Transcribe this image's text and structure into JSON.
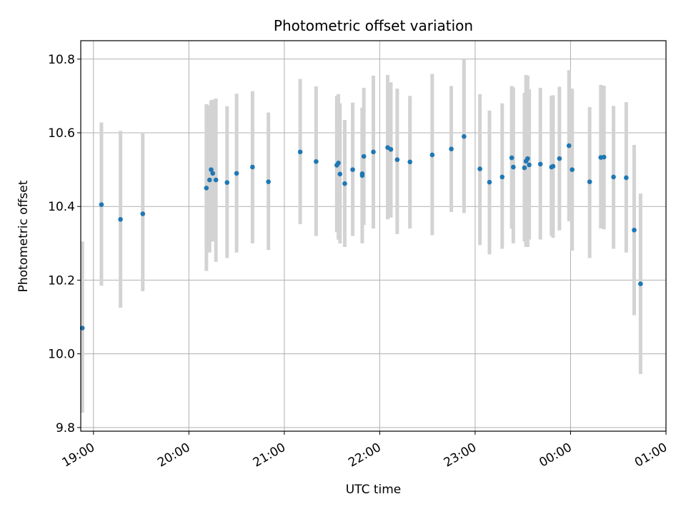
{
  "chart_data": {
    "type": "scatter",
    "title": "Photometric offset variation",
    "xlabel": "UTC time",
    "ylabel": "Photometric offset",
    "grid": true,
    "legend": "none",
    "xlim": [
      "18:52",
      "01:00"
    ],
    "ylim": [
      9.79,
      10.85
    ],
    "x_ticks": [
      "19:00",
      "20:00",
      "21:00",
      "22:00",
      "23:00",
      "00:00",
      "01:00"
    ],
    "y_ticks": [
      "9.8",
      "10.0",
      "10.2",
      "10.4",
      "10.6",
      "10.8"
    ],
    "colors": {
      "point": "#1f77b4",
      "error_bar": "#d3d3d3",
      "grid": "#b0b0b0"
    },
    "series": [
      {
        "x": [
          "18:53",
          "19:05",
          "19:17",
          "19:31",
          "20:11",
          "20:13",
          "20:14",
          "20:15",
          "20:17",
          "20:24",
          "20:30",
          "20:40",
          "20:50",
          "21:10",
          "21:20",
          "21:33",
          "21:34",
          "21:35",
          "21:38",
          "21:43",
          "21:49",
          "21:49",
          "21:50",
          "21:56",
          "22:05",
          "22:07",
          "22:11",
          "22:19",
          "22:33",
          "22:45",
          "22:53",
          "23:03",
          "23:09",
          "23:17",
          "23:23",
          "23:24",
          "23:31",
          "23:32",
          "23:33",
          "23:34",
          "23:41",
          "23:48",
          "23:49",
          "23:53",
          "23:59",
          "00:01",
          "00:12",
          "00:19",
          "00:21",
          "00:27",
          "00:35",
          "00:40"
        ],
        "y": [
          10.07,
          10.405,
          10.365,
          10.38,
          10.45,
          10.472,
          10.5,
          10.49,
          10.472,
          10.465,
          10.49,
          10.507,
          10.467,
          10.548,
          10.522,
          10.512,
          10.518,
          10.488,
          10.462,
          10.5,
          10.484,
          10.489,
          10.536,
          10.548,
          10.56,
          10.555,
          10.527,
          10.521,
          10.54,
          10.556,
          10.59,
          10.502,
          10.466,
          10.48,
          10.532,
          10.507,
          10.505,
          10.523,
          10.53,
          10.513,
          10.515,
          10.507,
          10.509,
          10.53,
          10.565,
          10.5,
          10.467,
          10.533,
          10.534,
          10.48,
          10.478,
          10.336
        ],
        "y_low": [
          9.84,
          10.185,
          10.125,
          10.17,
          10.225,
          10.275,
          10.31,
          10.305,
          10.25,
          10.26,
          10.275,
          10.3,
          10.282,
          10.352,
          10.32,
          10.33,
          10.31,
          10.3,
          10.29,
          10.32,
          10.3,
          10.345,
          10.35,
          10.34,
          10.365,
          10.37,
          10.325,
          10.34,
          10.322,
          10.385,
          10.382,
          10.295,
          10.27,
          10.285,
          10.34,
          10.3,
          10.305,
          10.29,
          10.29,
          10.31,
          10.31,
          10.32,
          10.315,
          10.335,
          10.36,
          10.28,
          10.26,
          10.34,
          10.338,
          10.285,
          10.275,
          10.105
        ],
        "y_high": [
          10.305,
          10.628,
          10.605,
          10.598,
          10.678,
          10.675,
          10.688,
          10.69,
          10.693,
          10.672,
          10.706,
          10.713,
          10.655,
          10.746,
          10.726,
          10.7,
          10.705,
          10.68,
          10.635,
          10.682,
          10.668,
          10.668,
          10.722,
          10.755,
          10.757,
          10.737,
          10.72,
          10.7,
          10.76,
          10.727,
          10.8,
          10.705,
          10.66,
          10.68,
          10.727,
          10.723,
          10.708,
          10.757,
          10.755,
          10.718,
          10.722,
          10.7,
          10.702,
          10.725,
          10.77,
          10.72,
          10.67,
          10.73,
          10.728,
          10.673,
          10.683,
          10.567
        ]
      },
      {
        "x": [
          "00:44"
        ],
        "y": [
          10.19
        ],
        "y_low": [
          9.945
        ],
        "y_high": [
          10.435
        ]
      }
    ]
  }
}
